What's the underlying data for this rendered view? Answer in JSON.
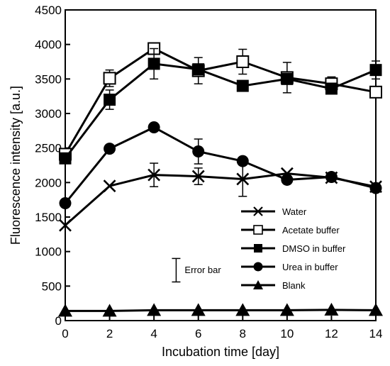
{
  "chart_data": {
    "type": "line",
    "xlabel": "Incubation time [day]",
    "ylabel": "Fluorescence intensity [a.u.]",
    "xlim": [
      0,
      14
    ],
    "ylim": [
      0,
      4500
    ],
    "xticks": [
      0,
      2,
      4,
      6,
      8,
      10,
      12,
      14
    ],
    "yticks": [
      0,
      500,
      1000,
      1500,
      2000,
      2500,
      3000,
      3500,
      4000,
      4500
    ],
    "x": [
      0,
      2,
      4,
      6,
      8,
      10,
      12,
      14
    ],
    "grid": false,
    "legend_position": "lower-right",
    "series": [
      {
        "name": "Water",
        "marker": "cross",
        "color": "#000000",
        "values": [
          1380,
          1950,
          2110,
          2090,
          2050,
          2130,
          2070,
          1940
        ],
        "errors": [
          0,
          0,
          170,
          120,
          250,
          0,
          0,
          0
        ]
      },
      {
        "name": "Acetate buffer",
        "marker": "open-square",
        "color": "#000000",
        "values": [
          2410,
          3510,
          3940,
          3620,
          3750,
          3520,
          3430,
          3310
        ],
        "errors": [
          80,
          120,
          80,
          190,
          180,
          220,
          100,
          0
        ]
      },
      {
        "name": "DMSO in buffer",
        "marker": "filled-square",
        "color": "#000000",
        "values": [
          2350,
          3200,
          3720,
          3640,
          3400,
          3500,
          3360,
          3630
        ],
        "errors": [
          0,
          140,
          220,
          0,
          0,
          0,
          0,
          130
        ]
      },
      {
        "name": "Urea in buffer",
        "marker": "filled-circle",
        "color": "#000000",
        "values": [
          1700,
          2490,
          2800,
          2450,
          2310,
          2040,
          2080,
          1920
        ],
        "errors": [
          0,
          0,
          0,
          180,
          0,
          0,
          0,
          0
        ]
      },
      {
        "name": "Blank",
        "marker": "filled-triangle",
        "color": "#000000",
        "values": [
          140,
          140,
          150,
          150,
          150,
          150,
          155,
          150
        ],
        "errors": [
          0,
          0,
          0,
          0,
          0,
          0,
          0,
          0
        ]
      }
    ],
    "annotations": [
      {
        "text": "Error bar",
        "half_range": 170,
        "x": 5.0,
        "y": 730
      }
    ]
  }
}
